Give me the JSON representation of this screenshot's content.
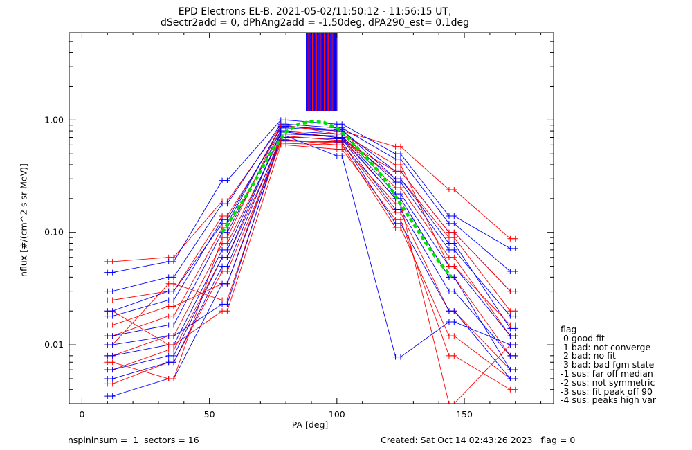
{
  "title_line1": "EPD Electrons EL-B, 2021-05-02/11:50:12 - 11:56:15 UT,",
  "title_line2": "dSectr2add = 0, dPhAng2add = -1.50deg, dPA290_est=   0.1deg",
  "footer_left": "nspininsum =  1  sectors = 16",
  "footer_right": "Created: Sat Oct 14 02:43:26 2023   flag = 0",
  "legend": {
    "title": "flag",
    "items": [
      " 0 good fit",
      " 1 bad: not converge",
      " 2 bad: no fit",
      " 3 bad: bad fgm state",
      "-1 sus: far off median",
      "-2 sus: not symmetric",
      "-3 sus: fit peak off 90",
      "-4 sus: peaks high var"
    ]
  },
  "colors": {
    "series_a": "#ff0000",
    "series_b": "#0000ff",
    "fit": "#00e000",
    "axes": "#000000"
  },
  "chart_data": {
    "type": "scatter",
    "xlabel": "PA [deg]",
    "ylabel": "nflux [#/(cm^2 s sr MeV)]",
    "xlim": [
      -5,
      185
    ],
    "ylim": [
      0.003,
      6.0
    ],
    "ylog": true,
    "x_ticks": [
      0,
      50,
      100,
      150
    ],
    "x_tick_labels": [
      "0",
      "50",
      "100",
      "150"
    ],
    "y_ticks": [
      0.01,
      0.1,
      1.0
    ],
    "y_tick_labels": [
      "0.01",
      "0.10",
      "1.00"
    ],
    "sample_pa": [
      10,
      12,
      34,
      36,
      55,
      57,
      78,
      80,
      100,
      102,
      123,
      125,
      144,
      146,
      168,
      170
    ],
    "series": [
      {
        "color": "red",
        "profiles": [
          [
            0.055,
            0.055,
            0.06,
            0.06,
            0.19,
            0.19,
            0.88,
            0.88,
            0.8,
            0.8,
            0.58,
            0.58,
            0.24,
            0.24,
            0.088,
            0.088
          ],
          [
            0.025,
            0.025,
            0.03,
            0.03,
            0.14,
            0.14,
            0.8,
            0.8,
            0.7,
            0.7,
            0.3,
            0.3,
            0.09,
            0.09,
            0.02,
            0.02
          ],
          [
            0.012,
            0.012,
            0.018,
            0.018,
            0.11,
            0.11,
            0.75,
            0.75,
            0.72,
            0.72,
            0.25,
            0.25,
            0.06,
            0.06,
            0.012,
            0.012
          ],
          [
            0.008,
            0.008,
            0.012,
            0.012,
            0.08,
            0.08,
            0.7,
            0.7,
            0.68,
            0.68,
            0.2,
            0.2,
            0.04,
            0.04,
            0.008,
            0.008
          ],
          [
            0.006,
            0.006,
            0.009,
            0.009,
            0.06,
            0.06,
            0.65,
            0.65,
            0.63,
            0.63,
            0.15,
            0.15,
            0.02,
            0.02,
            0.006,
            0.006
          ],
          [
            0.0045,
            0.0045,
            0.007,
            0.007,
            0.045,
            0.045,
            0.62,
            0.62,
            0.6,
            0.6,
            0.11,
            0.11,
            0.012,
            0.012,
            0.005,
            0.005
          ],
          [
            0.015,
            0.015,
            0.022,
            0.022,
            0.035,
            0.035,
            0.72,
            0.72,
            0.66,
            0.66,
            0.35,
            0.35,
            0.1,
            0.1,
            0.03,
            0.03
          ],
          [
            0.01,
            0.01,
            0.035,
            0.035,
            0.025,
            0.025,
            0.67,
            0.67,
            0.6,
            0.6,
            0.18,
            0.18,
            0.003,
            0.003,
            0.01,
            0.01
          ],
          [
            0.02,
            0.02,
            0.01,
            0.01,
            0.02,
            0.02,
            0.6,
            0.6,
            0.55,
            0.55,
            0.13,
            0.13,
            0.008,
            0.008,
            0.004,
            0.004
          ],
          [
            0.007,
            0.007,
            0.005,
            0.005,
            0.09,
            0.09,
            0.9,
            0.9,
            0.75,
            0.75,
            0.4,
            0.4,
            0.05,
            0.05,
            0.015,
            0.015
          ]
        ]
      },
      {
        "color": "blue",
        "profiles": [
          [
            0.044,
            0.044,
            0.055,
            0.055,
            0.29,
            0.29,
            1.0,
            1.0,
            0.92,
            0.92,
            0.5,
            0.5,
            0.14,
            0.14,
            0.072,
            0.072
          ],
          [
            0.03,
            0.03,
            0.04,
            0.04,
            0.18,
            0.18,
            0.92,
            0.92,
            0.85,
            0.85,
            0.45,
            0.45,
            0.12,
            0.12,
            0.045,
            0.045
          ],
          [
            0.018,
            0.018,
            0.025,
            0.025,
            0.13,
            0.13,
            0.85,
            0.85,
            0.8,
            0.8,
            0.35,
            0.35,
            0.1,
            0.1,
            0.03,
            0.03
          ],
          [
            0.012,
            0.012,
            0.015,
            0.015,
            0.1,
            0.1,
            0.8,
            0.8,
            0.75,
            0.75,
            0.28,
            0.28,
            0.07,
            0.07,
            0.018,
            0.018
          ],
          [
            0.008,
            0.008,
            0.01,
            0.01,
            0.07,
            0.07,
            0.75,
            0.75,
            0.72,
            0.72,
            0.22,
            0.22,
            0.05,
            0.05,
            0.012,
            0.012
          ],
          [
            0.005,
            0.005,
            0.007,
            0.007,
            0.05,
            0.05,
            0.7,
            0.7,
            0.68,
            0.68,
            0.16,
            0.16,
            0.03,
            0.03,
            0.008,
            0.008
          ],
          [
            0.0035,
            0.0035,
            0.005,
            0.005,
            0.035,
            0.035,
            0.66,
            0.66,
            0.64,
            0.64,
            0.12,
            0.12,
            0.02,
            0.02,
            0.005,
            0.005
          ],
          [
            0.01,
            0.01,
            0.012,
            0.012,
            0.023,
            0.023,
            0.72,
            0.72,
            0.48,
            0.48,
            0.0078,
            0.0078,
            0.016,
            0.016,
            0.01,
            0.01
          ],
          [
            0.02,
            0.02,
            0.03,
            0.03,
            0.12,
            0.12,
            0.88,
            0.88,
            0.82,
            0.82,
            0.3,
            0.3,
            0.08,
            0.08,
            0.014,
            0.014
          ],
          [
            0.006,
            0.006,
            0.008,
            0.008,
            0.06,
            0.06,
            0.78,
            0.78,
            0.7,
            0.7,
            0.2,
            0.2,
            0.04,
            0.04,
            0.006,
            0.006
          ]
        ]
      }
    ],
    "fit_curve": {
      "x": [
        55,
        60,
        65,
        70,
        75,
        80,
        85,
        90,
        95,
        100,
        105,
        110,
        115,
        120,
        125,
        130,
        135,
        140,
        145
      ],
      "y": [
        0.1,
        0.15,
        0.22,
        0.35,
        0.55,
        0.78,
        0.92,
        0.97,
        0.95,
        0.85,
        0.67,
        0.5,
        0.38,
        0.27,
        0.18,
        0.12,
        0.08,
        0.055,
        0.04
      ]
    },
    "spikes": {
      "x_range": [
        88,
        100
      ],
      "y_from": 1.2,
      "count": 40
    }
  }
}
